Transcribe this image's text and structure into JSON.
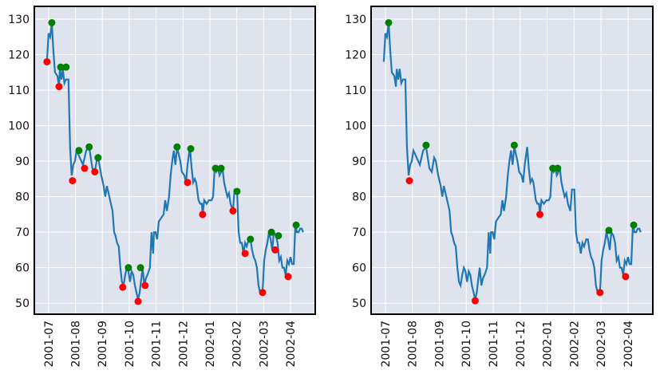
{
  "chart_data": [
    {
      "type": "line",
      "color": "#1f77b4",
      "grid": true,
      "x": [
        -0.06,
        0,
        0.06,
        0.12,
        0.18,
        0.24,
        0.33,
        0.39,
        0.42,
        0.48,
        0.53,
        0.59,
        0.65,
        0.74,
        0.8,
        0.86,
        0.92,
        0.98,
        1.04,
        1.1,
        1.16,
        1.28,
        1.4,
        1.51,
        1.63,
        1.72,
        1.81,
        1.87,
        1.96,
        2.05,
        2.11,
        2.17,
        2.23,
        2.32,
        2.38,
        2.44,
        2.49,
        2.55,
        2.61,
        2.67,
        2.73,
        2.79,
        2.85,
        2.91,
        2.97,
        3.03,
        3.09,
        3.15,
        3.21,
        3.27,
        3.33,
        3.39,
        3.45,
        3.5,
        3.56,
        3.62,
        3.68,
        3.77,
        3.83,
        3.89,
        3.92,
        3.98,
        4.04,
        4.1,
        4.19,
        4.28,
        4.34,
        4.4,
        4.48,
        4.54,
        4.6,
        4.66,
        4.72,
        4.78,
        4.84,
        4.9,
        4.96,
        5.05,
        5.11,
        5.17,
        5.26,
        5.32,
        5.38,
        5.44,
        5.49,
        5.58,
        5.64,
        5.7,
        5.73,
        5.79,
        5.88,
        5.97,
        6.06,
        6.12,
        6.18,
        6.24,
        6.3,
        6.36,
        6.42,
        6.47,
        6.53,
        6.59,
        6.65,
        6.71,
        6.77,
        6.86,
        6.92,
        7.01,
        7.07,
        7.13,
        7.19,
        7.25,
        7.31,
        7.37,
        7.45,
        7.51,
        7.57,
        7.63,
        7.69,
        7.75,
        7.81,
        7.87,
        7.96,
        8.02,
        8.08,
        8.14,
        8.2,
        8.26,
        8.32,
        8.38,
        8.46,
        8.52,
        8.58,
        8.64,
        8.7,
        8.76,
        8.82,
        8.88,
        8.94,
        9,
        9.06,
        9.12,
        9.18,
        9.24,
        9.3,
        9.36,
        9.42,
        9.47
      ],
      "values": [
        118,
        126,
        125,
        129,
        121,
        115,
        114,
        111,
        116,
        113,
        116,
        112,
        113,
        113,
        94,
        86,
        89,
        90,
        93,
        92,
        91,
        89,
        93,
        94,
        88,
        87,
        91,
        90,
        86,
        83,
        80,
        83,
        81,
        78,
        76,
        70,
        69,
        67,
        66,
        60,
        56,
        55,
        58,
        60,
        59,
        56,
        59,
        58,
        55,
        53,
        51,
        53,
        57,
        60,
        55,
        57,
        58,
        60,
        70,
        64,
        70,
        70,
        68,
        73,
        74,
        75,
        79,
        76,
        80,
        86,
        90,
        93,
        89,
        94,
        92,
        90,
        87,
        86,
        84,
        89,
        94,
        88,
        84,
        85,
        84,
        79,
        78,
        78,
        75,
        79,
        78,
        79,
        79,
        80,
        88,
        87,
        88,
        86,
        87,
        88,
        84,
        82,
        80,
        81,
        78,
        76,
        82,
        82,
        70,
        67,
        67,
        64,
        67,
        66,
        68,
        68,
        65,
        63,
        62,
        60,
        55,
        53,
        53,
        62,
        65,
        67,
        70,
        68,
        65,
        70,
        69,
        67,
        62,
        63,
        60,
        60,
        58,
        62,
        61,
        63,
        61,
        61,
        72,
        70,
        70,
        71,
        71,
        70
      ],
      "peaks": {
        "color": "#008000",
        "x": [
          0.12,
          0.45,
          0.65,
          1.13,
          1.51,
          1.84,
          2.97,
          3.42,
          4.78,
          5.29,
          6.21,
          6.42,
          7.01,
          7.51,
          8.29,
          8.55,
          9.21
        ],
        "values": [
          129,
          116.5,
          116.5,
          93,
          94,
          91,
          60,
          60,
          94,
          93.5,
          88,
          88,
          81.5,
          68,
          70,
          69,
          72
        ]
      },
      "troughs": {
        "color": "#ff0000",
        "x": [
          -0.06,
          0.39,
          0.89,
          1.34,
          1.72,
          2.76,
          3.33,
          3.59,
          5.17,
          5.73,
          6.86,
          7.31,
          7.96,
          8.43,
          8.91
        ],
        "values": [
          118,
          111,
          84.5,
          88,
          87,
          54.5,
          50.5,
          55,
          84,
          75,
          76,
          64,
          53,
          65,
          57.5
        ]
      },
      "xlim": [
        -0.53,
        9.92
      ],
      "xticks": [
        {
          "value": 0,
          "label": "2001-07"
        },
        {
          "value": 1,
          "label": "2001-08"
        },
        {
          "value": 2,
          "label": "2001-09"
        },
        {
          "value": 3,
          "label": "2001-10"
        },
        {
          "value": 4,
          "label": "2001-11"
        },
        {
          "value": 5,
          "label": "2001-12"
        },
        {
          "value": 6,
          "label": "2002-01"
        },
        {
          "value": 7,
          "label": "2002-02"
        },
        {
          "value": 8,
          "label": "2002-03"
        },
        {
          "value": 9,
          "label": "2002-04"
        }
      ],
      "ylim": [
        46.9,
        133.6
      ],
      "yticks": [
        50,
        60,
        70,
        80,
        90,
        100,
        110,
        120,
        130
      ]
    },
    {
      "type": "line",
      "color": "#1f77b4",
      "grid": true,
      "x": [
        -0.06,
        0,
        0.06,
        0.12,
        0.18,
        0.24,
        0.33,
        0.39,
        0.42,
        0.48,
        0.53,
        0.59,
        0.65,
        0.74,
        0.8,
        0.86,
        0.92,
        0.98,
        1.04,
        1.1,
        1.16,
        1.28,
        1.4,
        1.51,
        1.63,
        1.72,
        1.81,
        1.87,
        1.96,
        2.05,
        2.11,
        2.17,
        2.23,
        2.32,
        2.38,
        2.44,
        2.49,
        2.55,
        2.61,
        2.67,
        2.73,
        2.79,
        2.85,
        2.91,
        2.97,
        3.03,
        3.09,
        3.15,
        3.21,
        3.27,
        3.33,
        3.39,
        3.45,
        3.5,
        3.56,
        3.62,
        3.68,
        3.77,
        3.83,
        3.89,
        3.92,
        3.98,
        4.04,
        4.1,
        4.19,
        4.28,
        4.34,
        4.4,
        4.48,
        4.54,
        4.6,
        4.66,
        4.72,
        4.78,
        4.84,
        4.9,
        4.96,
        5.05,
        5.11,
        5.17,
        5.26,
        5.32,
        5.38,
        5.44,
        5.49,
        5.58,
        5.64,
        5.7,
        5.73,
        5.79,
        5.88,
        5.97,
        6.06,
        6.12,
        6.18,
        6.24,
        6.3,
        6.36,
        6.42,
        6.47,
        6.53,
        6.59,
        6.65,
        6.71,
        6.77,
        6.86,
        6.92,
        7.01,
        7.07,
        7.13,
        7.19,
        7.25,
        7.31,
        7.37,
        7.45,
        7.51,
        7.57,
        7.63,
        7.69,
        7.75,
        7.81,
        7.87,
        7.96,
        8.02,
        8.08,
        8.14,
        8.2,
        8.26,
        8.32,
        8.38,
        8.46,
        8.52,
        8.58,
        8.64,
        8.7,
        8.76,
        8.82,
        8.88,
        8.94,
        9,
        9.06,
        9.12,
        9.18,
        9.24,
        9.3,
        9.36,
        9.42,
        9.47
      ],
      "values": [
        118,
        126,
        125,
        129,
        121,
        115,
        114,
        111,
        116,
        113,
        116,
        112,
        113,
        113,
        94,
        86,
        89,
        90,
        93,
        92,
        91,
        89,
        93,
        94,
        88,
        87,
        91,
        90,
        86,
        83,
        80,
        83,
        81,
        78,
        76,
        70,
        69,
        67,
        66,
        60,
        56,
        55,
        58,
        60,
        59,
        56,
        59,
        58,
        55,
        53,
        51,
        53,
        57,
        60,
        55,
        57,
        58,
        60,
        70,
        64,
        70,
        70,
        68,
        73,
        74,
        75,
        79,
        76,
        80,
        86,
        90,
        93,
        89,
        94,
        92,
        90,
        87,
        86,
        84,
        89,
        94,
        88,
        84,
        85,
        84,
        79,
        78,
        78,
        75,
        79,
        78,
        79,
        79,
        80,
        88,
        87,
        88,
        86,
        87,
        88,
        84,
        82,
        80,
        81,
        78,
        76,
        82,
        82,
        70,
        67,
        67,
        64,
        67,
        66,
        68,
        68,
        65,
        63,
        62,
        60,
        55,
        53,
        53,
        62,
        65,
        67,
        70,
        68,
        65,
        70,
        69,
        67,
        62,
        63,
        60,
        60,
        58,
        62,
        61,
        63,
        61,
        61,
        72,
        70,
        70,
        71,
        71,
        70
      ],
      "peaks": {
        "color": "#008000",
        "x": [
          0.12,
          1.51,
          4.78,
          6.21,
          6.39,
          8.29,
          9.21
        ],
        "values": [
          129,
          94.5,
          94.5,
          88,
          88,
          70.5,
          72
        ]
      },
      "troughs": {
        "color": "#ff0000",
        "x": [
          0.89,
          3.33,
          5.73,
          7.96,
          8.91
        ],
        "values": [
          84.5,
          50.7,
          75,
          53,
          57.5
        ]
      },
      "xlim": [
        -0.53,
        9.92
      ],
      "xticks": [
        {
          "value": 0,
          "label": "2001-07"
        },
        {
          "value": 1,
          "label": "2001-08"
        },
        {
          "value": 2,
          "label": "2001-09"
        },
        {
          "value": 3,
          "label": "2001-10"
        },
        {
          "value": 4,
          "label": "2001-11"
        },
        {
          "value": 5,
          "label": "2001-12"
        },
        {
          "value": 6,
          "label": "2002-01"
        },
        {
          "value": 7,
          "label": "2002-02"
        },
        {
          "value": 8,
          "label": "2002-03"
        },
        {
          "value": 9,
          "label": "2002-04"
        }
      ],
      "ylim": [
        46.9,
        133.6
      ],
      "yticks": [
        50,
        60,
        70,
        80,
        90,
        100,
        110,
        120,
        130
      ]
    }
  ]
}
